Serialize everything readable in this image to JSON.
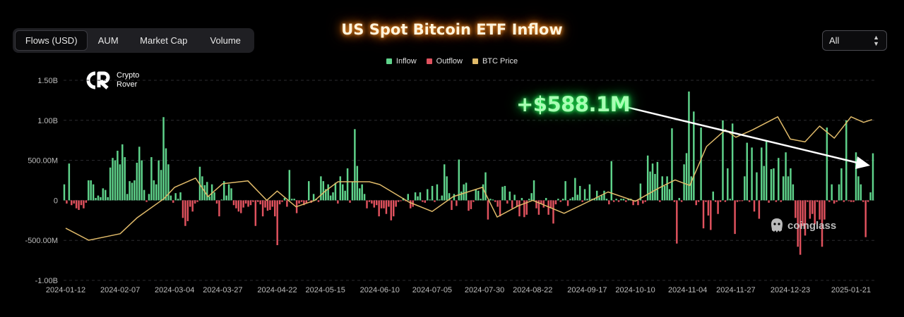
{
  "tabs": [
    {
      "label": "Flows (USD)",
      "active": true
    },
    {
      "label": "AUM",
      "active": false
    },
    {
      "label": "Market Cap",
      "active": false
    },
    {
      "label": "Volume",
      "active": false
    }
  ],
  "title": "US Spot Bitcoin ETF Inflow",
  "range_select": {
    "value": "All"
  },
  "logo": {
    "line1": "Crypto",
    "line2": "Rover"
  },
  "callout": "+$588.1M",
  "watermark": "coinglass",
  "colors": {
    "inflow": "#5fd38b",
    "outflow": "#e0525e",
    "btc_price": "#e1bb6a",
    "title_glow": "#ff7b00",
    "callout_glow": "#16d94a"
  },
  "chart_data": {
    "type": "bar",
    "title": "US Spot Bitcoin ETF Inflow",
    "legend": [
      "Inflow",
      "Outflow",
      "BTC Price"
    ],
    "legend_position": "top-center",
    "grid": true,
    "ylim": [
      -1000000000,
      1500000000
    ],
    "y_ticks": [
      {
        "value": 1500000000,
        "label": "1.50B"
      },
      {
        "value": 1000000000,
        "label": "1.00B"
      },
      {
        "value": 500000000,
        "label": "500.00M"
      },
      {
        "value": 0,
        "label": "0"
      },
      {
        "value": -500000000,
        "label": "-500.00M"
      },
      {
        "value": -1000000000,
        "label": "-1.00B"
      }
    ],
    "x_tick_labels": [
      "2024-01-12",
      "2024-02-07",
      "2024-03-04",
      "2024-03-27",
      "2024-04-22",
      "2024-05-15",
      "2024-06-10",
      "2024-07-05",
      "2024-07-30",
      "2024-08-22",
      "2024-09-17",
      "2024-10-10",
      "2024-11-04",
      "2024-11-27",
      "2024-12-23",
      "2025-01-21"
    ],
    "flows_musd": [
      200,
      -40,
      460,
      -60,
      -40,
      -100,
      -120,
      -60,
      -100,
      -30,
      250,
      250,
      200,
      30,
      60,
      40,
      150,
      130,
      40,
      410,
      530,
      500,
      620,
      450,
      700,
      540,
      80,
      240,
      220,
      250,
      470,
      670,
      500,
      130,
      -20,
      80,
      540,
      250,
      200,
      500,
      380,
      1040,
      650,
      450,
      60,
      -30,
      90,
      20,
      100,
      -220,
      -320,
      -260,
      -80,
      -140,
      -40,
      -20,
      420,
      300,
      190,
      230,
      50,
      200,
      100,
      -40,
      -200,
      10,
      240,
      60,
      200,
      150,
      -60,
      -100,
      -140,
      -160,
      -90,
      -40,
      -80,
      -60,
      -20,
      -320,
      -20,
      -50,
      -200,
      -90,
      -130,
      -120,
      -80,
      -200,
      -560,
      -50,
      -20,
      30,
      -80,
      380,
      20,
      20,
      -160,
      -40,
      -20,
      -60,
      -40,
      240,
      -30,
      80,
      20,
      -20,
      300,
      240,
      140,
      200,
      60,
      100,
      220,
      -40,
      300,
      200,
      120,
      400,
      -30,
      230,
      890,
      430,
      150,
      200,
      80,
      -100,
      -20,
      -40,
      -90,
      -60,
      -200,
      -100,
      -100,
      -170,
      -80,
      -250,
      -200,
      -80,
      -20,
      -10,
      30,
      -10,
      80,
      -100,
      -80,
      100,
      50,
      100,
      -20,
      -30,
      140,
      10,
      180,
      -20,
      200,
      10,
      60,
      450,
      300,
      90,
      -120,
      80,
      -70,
      510,
      110,
      200,
      220,
      -130,
      -110,
      -20,
      140,
      120,
      20,
      200,
      350,
      -240,
      20,
      10,
      -20,
      -80,
      -200,
      170,
      180,
      -40,
      110,
      -100,
      70,
      -80,
      -200,
      30,
      -210,
      -180,
      20,
      90,
      250,
      -100,
      -180,
      -40,
      -90,
      30,
      -180,
      -100,
      -290,
      -50,
      20,
      -20,
      20,
      240,
      -70,
      20,
      40,
      280,
      70,
      180,
      -20,
      140,
      20,
      200,
      20,
      20,
      120,
      40,
      60,
      120,
      20,
      -50,
      490,
      -20,
      20,
      -20,
      20,
      20,
      -20,
      20,
      20,
      -60,
      -10,
      -60,
      210,
      -40,
      -20,
      560,
      360,
      460,
      330,
      480,
      -20,
      300,
      180,
      300,
      140,
      900,
      -20,
      -540,
      30,
      -20,
      450,
      590,
      1360,
      300,
      1110,
      -60,
      -20,
      910,
      -350,
      -20,
      -190,
      -370,
      110,
      -20,
      -170,
      -20,
      1000,
      -20,
      400,
      20,
      960,
      -420,
      -20,
      -10,
      -10,
      300,
      720,
      -20,
      660,
      -140,
      350,
      -230,
      660,
      430,
      740,
      -30,
      390,
      400,
      -20,
      530,
      -20,
      300,
      600,
      300,
      400,
      200,
      -220,
      -580,
      -680,
      -320,
      -440,
      -20,
      -230,
      -170,
      -300,
      -20,
      -240,
      -580,
      -240,
      910,
      -20,
      200,
      -40,
      -20,
      200,
      400,
      -20,
      1000,
      -10,
      -20,
      -20,
      600,
      300,
      200,
      -20,
      -460,
      -20,
      100,
      588.1
    ],
    "callout_value_musd": 588.1,
    "btc_price_usd": {
      "note_unit": "USD",
      "points": [
        [
          "2024-01-12",
          46000
        ],
        [
          "2024-01-23",
          39500
        ],
        [
          "2024-02-07",
          43000
        ],
        [
          "2024-02-15",
          51500
        ],
        [
          "2024-02-28",
          62000
        ],
        [
          "2024-03-04",
          68000
        ],
        [
          "2024-03-14",
          73000
        ],
        [
          "2024-03-20",
          63000
        ],
        [
          "2024-03-27",
          70000
        ],
        [
          "2024-04-08",
          71500
        ],
        [
          "2024-04-17",
          61000
        ],
        [
          "2024-04-22",
          66000
        ],
        [
          "2024-05-01",
          57500
        ],
        [
          "2024-05-10",
          61000
        ],
        [
          "2024-05-15",
          66000
        ],
        [
          "2024-05-21",
          71000
        ],
        [
          "2024-06-05",
          71000
        ],
        [
          "2024-06-10",
          69500
        ],
        [
          "2024-06-24",
          60000
        ],
        [
          "2024-07-05",
          55000
        ],
        [
          "2024-07-15",
          63000
        ],
        [
          "2024-07-29",
          68000
        ],
        [
          "2024-08-05",
          52000
        ],
        [
          "2024-08-15",
          58000
        ],
        [
          "2024-08-22",
          61000
        ],
        [
          "2024-09-06",
          54000
        ],
        [
          "2024-09-17",
          60000
        ],
        [
          "2024-09-27",
          65500
        ],
        [
          "2024-10-10",
          60500
        ],
        [
          "2024-10-21",
          67500
        ],
        [
          "2024-10-29",
          72000
        ],
        [
          "2024-11-05",
          69000
        ],
        [
          "2024-11-13",
          90000
        ],
        [
          "2024-11-22",
          99000
        ],
        [
          "2024-11-27",
          95000
        ],
        [
          "2024-12-05",
          99000
        ],
        [
          "2024-12-17",
          106000
        ],
        [
          "2024-12-23",
          94000
        ],
        [
          "2024-12-30",
          92500
        ],
        [
          "2025-01-06",
          101000
        ],
        [
          "2025-01-13",
          94500
        ],
        [
          "2025-01-21",
          106000
        ],
        [
          "2025-01-27",
          103000
        ],
        [
          "2025-01-31",
          104500
        ]
      ]
    }
  }
}
